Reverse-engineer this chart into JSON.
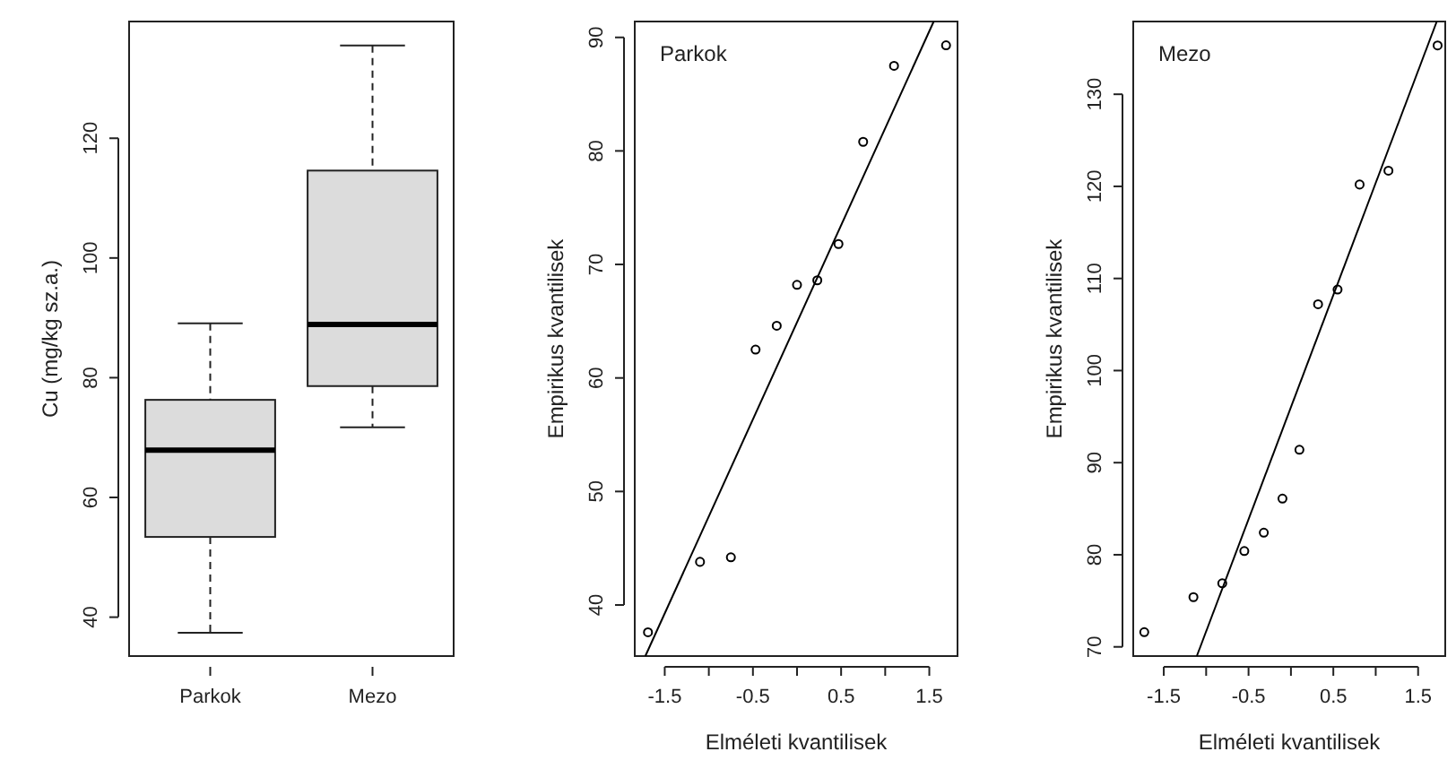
{
  "chart_data": [
    {
      "type": "box",
      "categories": [
        "Parkok",
        "Mezo"
      ],
      "ylabel": "Cu (mg/kg sz.a.)",
      "ylim": [
        33.5,
        139.5
      ],
      "yticks": [
        40,
        60,
        80,
        100,
        120
      ],
      "color": "#dcdcdc",
      "boxes": [
        {
          "low": 37.4,
          "q1": 53.4,
          "median": 67.9,
          "q3": 76.3,
          "high": 89.1
        },
        {
          "low": 71.7,
          "q1": 78.6,
          "median": 88.9,
          "q3": 114.6,
          "high": 135.5
        }
      ]
    },
    {
      "type": "scatter",
      "xlabel": "Elméleti kvantilisek",
      "ylabel": "Empirikus kvantilisek",
      "annotations": [
        "Parkok"
      ],
      "xlim": [
        -1.84,
        1.82
      ],
      "xticks": [
        -1.5,
        {
          "value": -1,
          "label": null
        },
        -0.5,
        {
          "value": 0,
          "label": null
        },
        0.5,
        {
          "value": 1,
          "label": null
        },
        1.5
      ],
      "ylim": [
        35.5,
        91.4
      ],
      "yticks": [
        40,
        50,
        60,
        70,
        80,
        90
      ],
      "series": [
        {
          "type": "scatter",
          "marker": "circle",
          "color": "#000000",
          "x": [
            -1.69,
            -1.1,
            -0.75,
            -0.47,
            -0.23,
            0,
            0.23,
            0.47,
            0.75,
            1.1,
            1.69
          ],
          "values": [
            37.6,
            43.8,
            44.2,
            62.5,
            64.6,
            68.2,
            68.6,
            71.8,
            80.8,
            87.5,
            89.3
          ]
        },
        {
          "type": "line",
          "marker": "none",
          "color": "#000000",
          "x": [
            -1.72,
            1.55
          ],
          "values": [
            35.5,
            91.4
          ]
        }
      ]
    },
    {
      "type": "scatter",
      "xlabel": "Elméleti kvantilisek",
      "ylabel": "Empirikus kvantilisek",
      "annotations": [
        "Mezo"
      ],
      "xlim": [
        -1.86,
        1.82
      ],
      "xticks": [
        -1.5,
        {
          "value": -1,
          "label": null
        },
        -0.5,
        {
          "value": 0,
          "label": null
        },
        0.5,
        {
          "value": 1,
          "label": null
        },
        1.5
      ],
      "ylim": [
        69.0,
        137.9
      ],
      "yticks": [
        70,
        80,
        90,
        100,
        110,
        120,
        130
      ],
      "series": [
        {
          "type": "scatter",
          "marker": "circle",
          "color": "#000000",
          "x": [
            -1.73,
            -1.15,
            -0.81,
            -0.55,
            -0.32,
            -0.1,
            0.1,
            0.32,
            0.55,
            0.81,
            1.15,
            1.73
          ],
          "values": [
            71.6,
            75.4,
            76.9,
            80.4,
            82.4,
            86.1,
            91.4,
            107.2,
            108.8,
            120.2,
            121.7,
            135.3
          ]
        },
        {
          "type": "line",
          "marker": "none",
          "color": "#000000",
          "x": [
            -1.11,
            1.72
          ],
          "values": [
            69.0,
            137.9
          ]
        }
      ]
    }
  ]
}
